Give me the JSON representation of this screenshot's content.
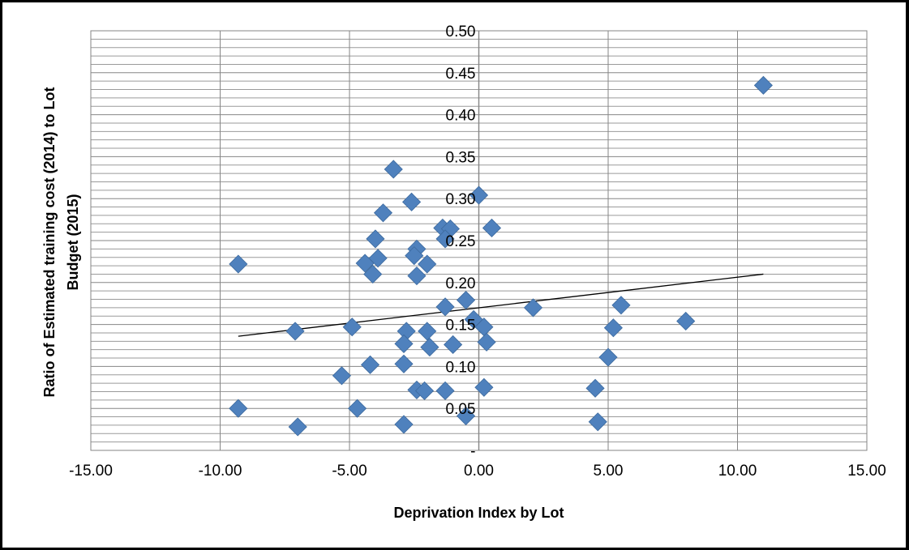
{
  "chart_data": {
    "type": "scatter",
    "title": "",
    "xlabel": "Deprivation Index by Lot",
    "ylabel_lines": [
      "Ratio of Estimated training cost (2014) to Lot",
      "Budget (2015)"
    ],
    "xlim": [
      -15,
      15
    ],
    "ylim": [
      0,
      0.5
    ],
    "x_ticks": [
      -15,
      -10,
      -5,
      0,
      5,
      10,
      15
    ],
    "x_tick_labels": [
      "-15.00",
      "-10.00",
      "-5.00",
      "0.00",
      "5.00",
      "10.00",
      "15.00"
    ],
    "y_ticks": [
      0,
      0.05,
      0.1,
      0.15,
      0.2,
      0.25,
      0.3,
      0.35,
      0.4,
      0.45,
      0.5
    ],
    "y_tick_labels": [
      "-",
      "0.05",
      "0.10",
      "0.15",
      "0.20",
      "0.25",
      "0.30",
      "0.35",
      "0.40",
      "0.45",
      "0.50"
    ],
    "grid": {
      "major_x": true,
      "major_y": true,
      "minor_y": true
    },
    "marker_color": "#4f81bd",
    "marker_edge_color": "#3d6a9e",
    "trendline": {
      "type": "linear",
      "x": [
        -9.3,
        11.0
      ],
      "y": [
        0.136,
        0.21
      ],
      "color": "#000000"
    },
    "points": [
      {
        "x": 11.0,
        "y": 0.435
      },
      {
        "x": -3.3,
        "y": 0.335
      },
      {
        "x": 0.0,
        "y": 0.304
      },
      {
        "x": -2.6,
        "y": 0.296
      },
      {
        "x": -3.7,
        "y": 0.283
      },
      {
        "x": -1.4,
        "y": 0.265
      },
      {
        "x": -1.1,
        "y": 0.264
      },
      {
        "x": 0.5,
        "y": 0.265
      },
      {
        "x": -4.0,
        "y": 0.252
      },
      {
        "x": -1.3,
        "y": 0.252
      },
      {
        "x": -2.4,
        "y": 0.24
      },
      {
        "x": -2.5,
        "y": 0.232
      },
      {
        "x": -3.9,
        "y": 0.229
      },
      {
        "x": -4.4,
        "y": 0.223
      },
      {
        "x": -9.3,
        "y": 0.222
      },
      {
        "x": -2.0,
        "y": 0.222
      },
      {
        "x": -4.1,
        "y": 0.21
      },
      {
        "x": -2.4,
        "y": 0.208
      },
      {
        "x": -0.5,
        "y": 0.179
      },
      {
        "x": -1.3,
        "y": 0.171
      },
      {
        "x": 2.1,
        "y": 0.17
      },
      {
        "x": 5.5,
        "y": 0.173
      },
      {
        "x": -0.2,
        "y": 0.156
      },
      {
        "x": 8.0,
        "y": 0.154
      },
      {
        "x": -4.9,
        "y": 0.147
      },
      {
        "x": 0.2,
        "y": 0.147
      },
      {
        "x": 5.2,
        "y": 0.146
      },
      {
        "x": -7.1,
        "y": 0.142
      },
      {
        "x": -2.8,
        "y": 0.142
      },
      {
        "x": -2.0,
        "y": 0.142
      },
      {
        "x": -2.9,
        "y": 0.127
      },
      {
        "x": 0.3,
        "y": 0.129
      },
      {
        "x": -1.9,
        "y": 0.123
      },
      {
        "x": -1.0,
        "y": 0.126
      },
      {
        "x": 5.0,
        "y": 0.111
      },
      {
        "x": -2.9,
        "y": 0.103
      },
      {
        "x": -4.2,
        "y": 0.102
      },
      {
        "x": -5.3,
        "y": 0.089
      },
      {
        "x": 0.2,
        "y": 0.075
      },
      {
        "x": 4.5,
        "y": 0.074
      },
      {
        "x": -2.4,
        "y": 0.072
      },
      {
        "x": -2.1,
        "y": 0.071
      },
      {
        "x": -1.3,
        "y": 0.071
      },
      {
        "x": -9.3,
        "y": 0.05
      },
      {
        "x": -4.7,
        "y": 0.05
      },
      {
        "x": -0.5,
        "y": 0.041
      },
      {
        "x": -2.9,
        "y": 0.031
      },
      {
        "x": 4.6,
        "y": 0.034
      },
      {
        "x": -7.0,
        "y": 0.028
      }
    ]
  }
}
